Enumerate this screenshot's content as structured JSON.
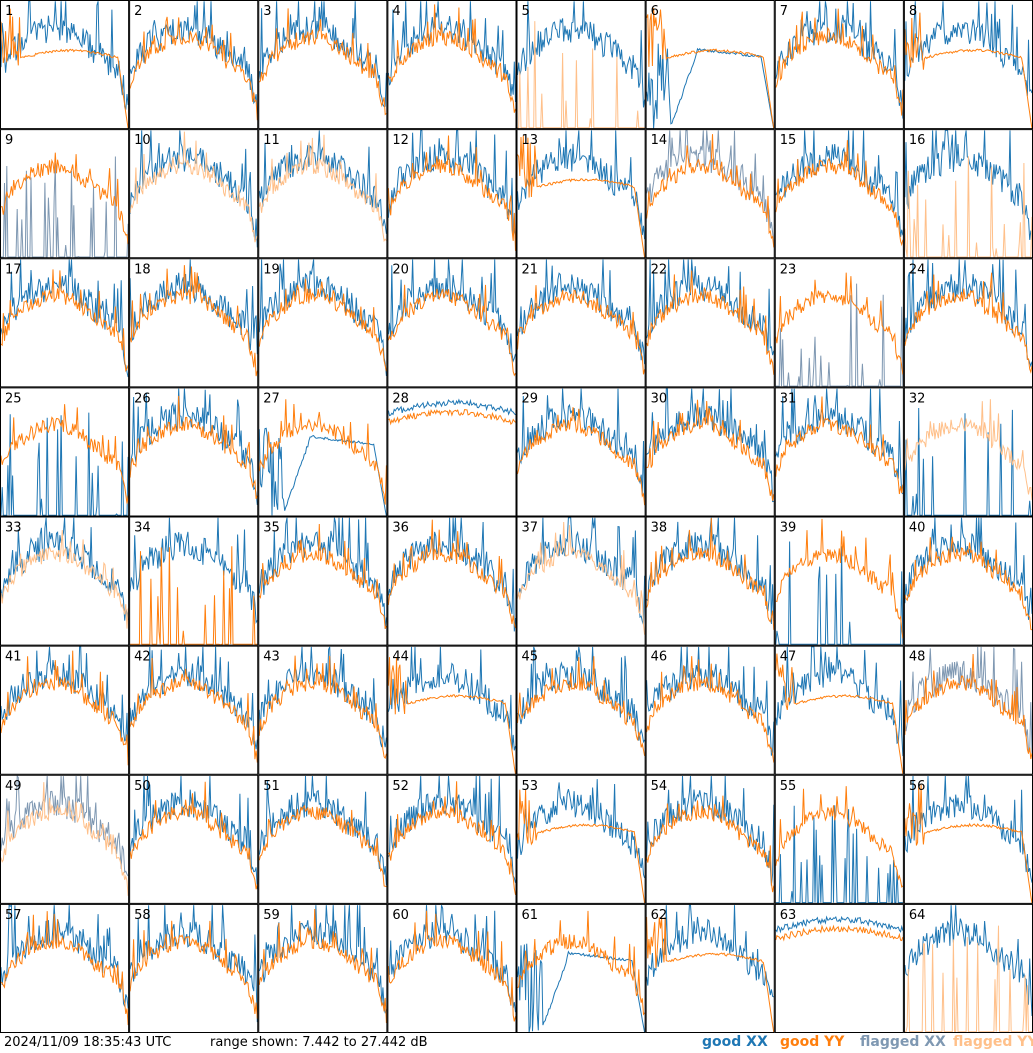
{
  "footer": {
    "timestamp": "2024/11/09 18:35:43 UTC",
    "range_text": "range shown: 7.442 to 27.442 dB"
  },
  "legend": [
    {
      "label": "good XX",
      "color": "#1f77b4"
    },
    {
      "label": "good YY",
      "color": "#ff7f0e"
    },
    {
      "label": "flagged XX",
      "color": "#7f98b2"
    },
    {
      "label": "flagged YY",
      "color": "#ffc08a"
    }
  ],
  "chart_data": {
    "type": "line",
    "layout": "grid 8x8 small multiples",
    "panels": 64,
    "ylim": [
      7.442,
      27.442
    ],
    "ylabel": "dB",
    "panel_labels": [
      "1",
      "2",
      "3",
      "4",
      "5",
      "6",
      "7",
      "8",
      "9",
      "10",
      "11",
      "12",
      "13",
      "14",
      "15",
      "16",
      "17",
      "18",
      "19",
      "20",
      "21",
      "22",
      "23",
      "24",
      "25",
      "26",
      "27",
      "28",
      "29",
      "30",
      "31",
      "32",
      "33",
      "34",
      "35",
      "36",
      "37",
      "38",
      "39",
      "40",
      "41",
      "42",
      "43",
      "44",
      "45",
      "46",
      "47",
      "48",
      "49",
      "50",
      "51",
      "52",
      "53",
      "54",
      "55",
      "56",
      "57",
      "58",
      "59",
      "60",
      "61",
      "62",
      "63",
      "64"
    ],
    "panel_styles": {
      "1": {
        "xx": "normal",
        "yy": "shelf",
        "xx_flag": false,
        "yy_flag": false
      },
      "5": {
        "xx": "normal",
        "yy": "spikes",
        "xx_flag": false,
        "yy_flag": true
      },
      "6": {
        "xx": "dip",
        "yy": "shelf",
        "xx_flag": false,
        "yy_flag": false
      },
      "8": {
        "xx": "normal",
        "yy": "shelf",
        "xx_flag": false,
        "yy_flag": false
      },
      "9": {
        "xx": "spikes",
        "yy": "normal",
        "xx_flag": true,
        "yy_flag": false
      },
      "10": {
        "xx": "normal",
        "yy": "normal",
        "xx_flag": false,
        "yy_flag": true
      },
      "11": {
        "xx": "normal",
        "yy": "normal",
        "xx_flag": false,
        "yy_flag": true
      },
      "13": {
        "xx": "normal",
        "yy": "shelf",
        "xx_flag": false,
        "yy_flag": false
      },
      "14": {
        "xx": "normal",
        "yy": "normal",
        "xx_flag": true,
        "yy_flag": false
      },
      "16": {
        "xx": "normal",
        "yy": "spikes",
        "xx_flag": false,
        "yy_flag": true
      },
      "23": {
        "xx": "spikes",
        "yy": "normal",
        "xx_flag": true,
        "yy_flag": false
      },
      "25": {
        "xx": "spikes",
        "yy": "normal",
        "xx_flag": false,
        "yy_flag": false
      },
      "27": {
        "xx": "dip",
        "yy": "normal",
        "xx_flag": false,
        "yy_flag": false
      },
      "28": {
        "xx": "flat",
        "yy": "flat",
        "xx_flag": false,
        "yy_flag": false
      },
      "32": {
        "xx": "spikes",
        "yy": "normal",
        "xx_flag": false,
        "yy_flag": true
      },
      "33": {
        "xx": "normal",
        "yy": "normal",
        "xx_flag": false,
        "yy_flag": true
      },
      "34": {
        "xx": "normal",
        "yy": "spikes",
        "xx_flag": false,
        "yy_flag": false
      },
      "37": {
        "xx": "normal",
        "yy": "normal",
        "xx_flag": false,
        "yy_flag": true
      },
      "39": {
        "xx": "spikes",
        "yy": "normal",
        "xx_flag": false,
        "yy_flag": false
      },
      "44": {
        "xx": "normal",
        "yy": "shelf",
        "xx_flag": false,
        "yy_flag": false
      },
      "47": {
        "xx": "normal",
        "yy": "shelf",
        "xx_flag": false,
        "yy_flag": false
      },
      "48": {
        "xx": "normal",
        "yy": "normal",
        "xx_flag": true,
        "yy_flag": false
      },
      "49": {
        "xx": "normal",
        "yy": "normal",
        "xx_flag": true,
        "yy_flag": true
      },
      "53": {
        "xx": "normal",
        "yy": "shelf",
        "xx_flag": false,
        "yy_flag": false
      },
      "55": {
        "xx": "spikes",
        "yy": "normal",
        "xx_flag": false,
        "yy_flag": false
      },
      "56": {
        "xx": "normal",
        "yy": "shelf",
        "xx_flag": false,
        "yy_flag": false
      },
      "61": {
        "xx": "dip",
        "yy": "normal",
        "xx_flag": false,
        "yy_flag": false
      },
      "62": {
        "xx": "normal",
        "yy": "shelf",
        "xx_flag": false,
        "yy_flag": false
      },
      "63": {
        "xx": "flat",
        "yy": "flat",
        "xx_flag": false,
        "yy_flag": false
      },
      "64": {
        "xx": "normal",
        "yy": "spikes",
        "xx_flag": false,
        "yy_flag": true
      }
    }
  }
}
